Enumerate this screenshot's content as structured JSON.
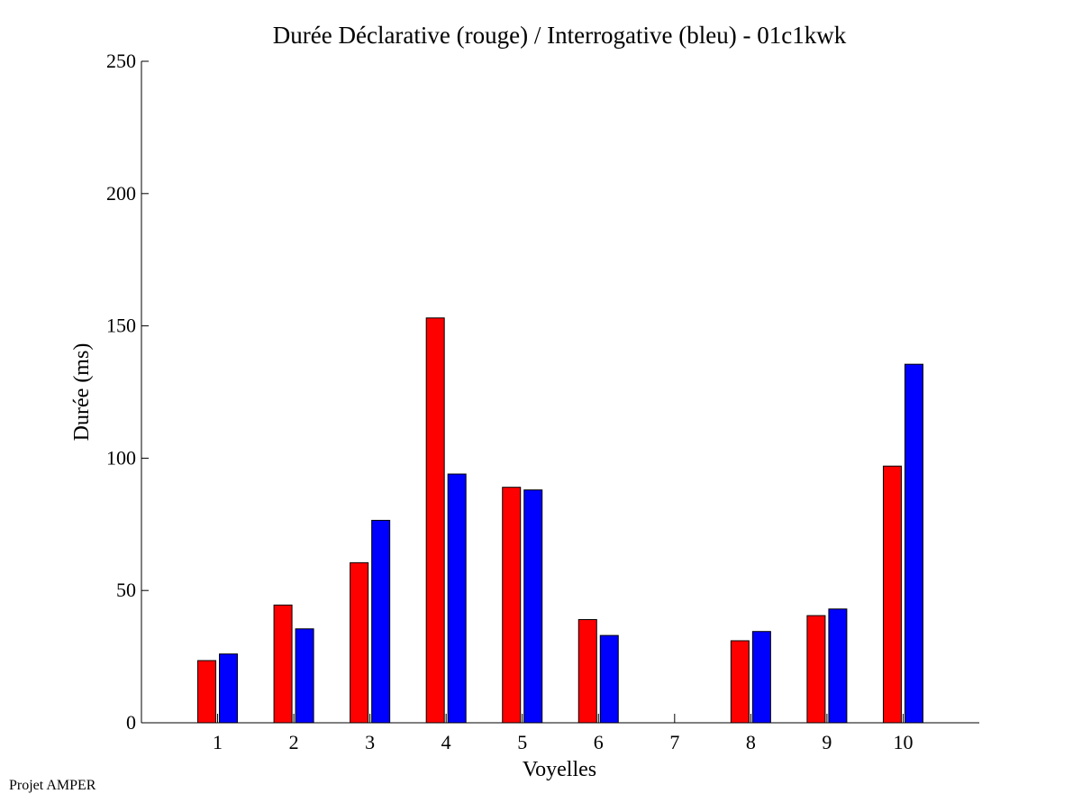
{
  "chart_data": {
    "type": "bar",
    "title": "Durée Déclarative (rouge) / Interrogative (bleu) - 01c1kwk",
    "xlabel": "Voyelles",
    "ylabel": "Durée (ms)",
    "categories": [
      "1",
      "2",
      "3",
      "4",
      "5",
      "6",
      "7",
      "8",
      "9",
      "10"
    ],
    "ylim": [
      0,
      250
    ],
    "yticks": [
      0,
      50,
      100,
      150,
      200,
      250
    ],
    "grid": false,
    "legend": "none",
    "series": [
      {
        "color": "#ff0000",
        "values": [
          23.5,
          44.5,
          60.5,
          153,
          89,
          39,
          null,
          31,
          40.5,
          97
        ]
      },
      {
        "color": "#0000ff",
        "values": [
          26,
          35.5,
          76.5,
          94,
          88,
          33,
          null,
          34.5,
          43,
          135.5
        ]
      }
    ]
  },
  "footer": {
    "note": "Projet AMPER"
  }
}
